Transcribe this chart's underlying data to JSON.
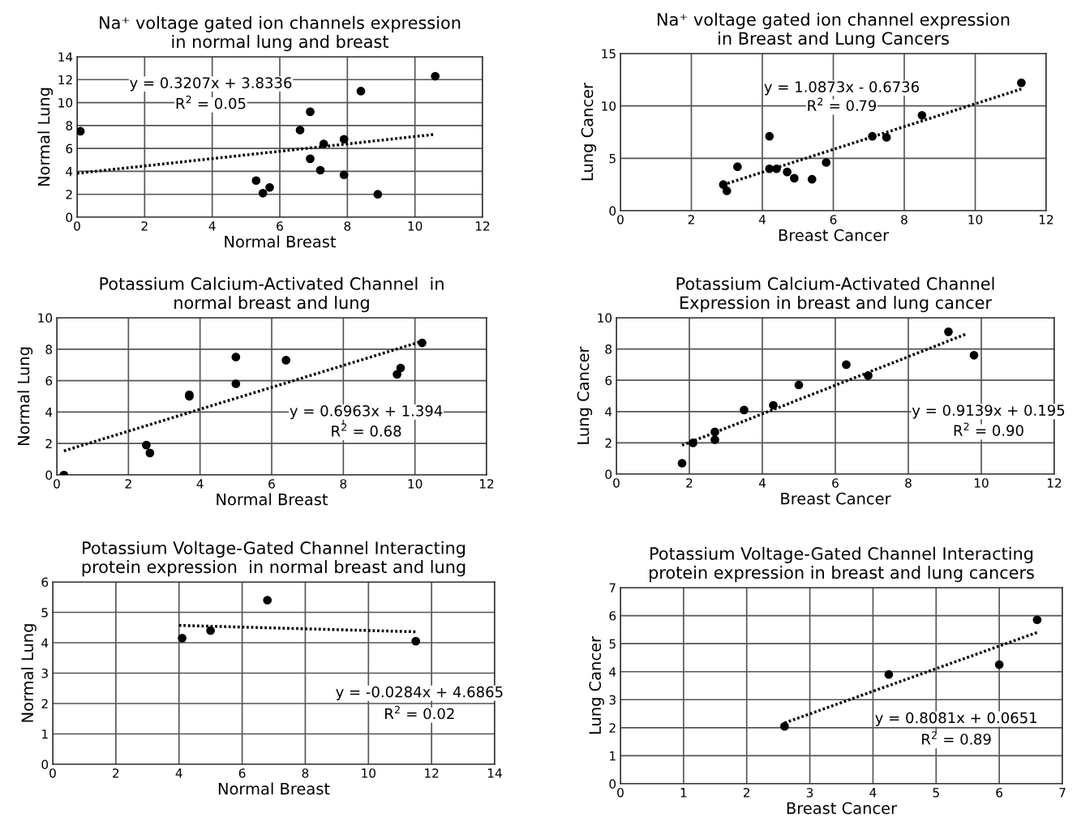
{
  "chart_data": [
    {
      "type": "scatter",
      "title": "Na⁺ voltage gated ion channels expression\nin normal lung and breast",
      "xlabel": "Normal Breast",
      "ylabel": "Normal Lung",
      "xlim": [
        0,
        12
      ],
      "ylim": [
        0,
        14
      ],
      "xticks": [
        0,
        2,
        4,
        6,
        8,
        10,
        12
      ],
      "yticks": [
        0,
        2,
        4,
        6,
        8,
        10,
        12,
        14
      ],
      "grid": true,
      "legend": false,
      "annotations": [
        "y = 0.3207x + 3.8336",
        "R$^{2}$ = 0.05"
      ],
      "series": [
        {
          "marker": "circle",
          "color": "#000000",
          "x": [
            0.1,
            5.3,
            5.5,
            5.7,
            6.6,
            6.9,
            6.9,
            7.2,
            7.3,
            7.9,
            7.9,
            8.4,
            8.9,
            10.6
          ],
          "values": [
            7.5,
            3.2,
            2.1,
            2.6,
            7.6,
            9.2,
            5.1,
            4.1,
            6.4,
            6.8,
            3.7,
            11.0,
            2.0,
            12.3
          ]
        },
        {
          "type": "line",
          "marker": "none",
          "line_style": "dotted",
          "color": "#000000",
          "x": [
            0,
            10.6
          ],
          "values": [
            3.83,
            7.23
          ]
        }
      ]
    },
    {
      "type": "scatter",
      "title": "Na⁺ voltage gated ion channel expression\nin Breast and Lung Cancers",
      "xlabel": "Breast Cancer",
      "ylabel": "Lung Cancer",
      "xlim": [
        0,
        12
      ],
      "ylim": [
        0,
        15
      ],
      "xticks": [
        0,
        2,
        4,
        6,
        8,
        10,
        12
      ],
      "yticks": [
        0,
        5,
        10,
        15
      ],
      "grid": true,
      "legend": false,
      "annotations": [
        "y = 1.0873x - 0.6736",
        "R$^{2}$ = 0.79"
      ],
      "series": [
        {
          "marker": "circle",
          "color": "#000000",
          "x": [
            2.9,
            3.0,
            3.3,
            4.2,
            4.2,
            4.4,
            4.7,
            4.9,
            5.4,
            5.8,
            7.1,
            7.5,
            8.5,
            11.3
          ],
          "values": [
            2.5,
            1.9,
            4.2,
            7.1,
            4.0,
            4.0,
            3.7,
            3.1,
            3.0,
            4.6,
            7.1,
            7.0,
            9.1,
            12.2
          ]
        },
        {
          "type": "line",
          "marker": "none",
          "line_style": "dotted",
          "color": "#000000",
          "x": [
            2.9,
            11.3
          ],
          "values": [
            2.48,
            11.61
          ]
        }
      ]
    },
    {
      "type": "scatter",
      "title": "Potassium Calcium-Activated Channel  in\nnormal breast and lung",
      "xlabel": "Normal Breast",
      "ylabel": "Normal Lung",
      "xlim": [
        0,
        12
      ],
      "ylim": [
        0,
        10
      ],
      "xticks": [
        0,
        2,
        4,
        6,
        8,
        10,
        12
      ],
      "yticks": [
        0,
        2,
        4,
        6,
        8,
        10
      ],
      "grid": true,
      "legend": false,
      "annotations": [
        "y = 0.6963x + 1.394",
        "R$^{2}$ = 0.68"
      ],
      "series": [
        {
          "marker": "circle",
          "color": "#000000",
          "x": [
            0.2,
            2.5,
            2.6,
            3.7,
            3.7,
            5.0,
            5.0,
            6.4,
            9.5,
            9.6,
            10.2
          ],
          "values": [
            0.0,
            1.9,
            1.4,
            5.1,
            5.0,
            7.5,
            5.8,
            7.3,
            6.4,
            6.8,
            8.4
          ]
        },
        {
          "type": "line",
          "marker": "none",
          "line_style": "dotted",
          "color": "#000000",
          "x": [
            0.2,
            10.2
          ],
          "values": [
            1.53,
            8.5
          ]
        }
      ]
    },
    {
      "type": "scatter",
      "title": "Potassium Calcium-Activated Channel\nExpression in breast and lung cancer",
      "xlabel": "Breast Cancer",
      "ylabel": "Lung Cancer",
      "xlim": [
        0,
        12
      ],
      "ylim": [
        0,
        10
      ],
      "xticks": [
        0,
        2,
        4,
        6,
        8,
        10,
        12
      ],
      "yticks": [
        0,
        2,
        4,
        6,
        8,
        10
      ],
      "grid": true,
      "legend": false,
      "annotations": [
        "y = 0.9139x + 0.195",
        "R$^{2}$ = 0.90"
      ],
      "series": [
        {
          "marker": "circle",
          "color": "#000000",
          "x": [
            1.8,
            2.1,
            2.7,
            2.7,
            3.5,
            4.3,
            5.0,
            6.3,
            6.9,
            9.1,
            9.8
          ],
          "values": [
            0.7,
            2.0,
            2.7,
            2.2,
            4.1,
            4.4,
            5.7,
            7.0,
            6.3,
            9.1,
            7.6
          ]
        },
        {
          "type": "line",
          "marker": "none",
          "line_style": "dotted",
          "color": "#000000",
          "x": [
            1.8,
            9.6
          ],
          "values": [
            1.84,
            8.97
          ]
        }
      ]
    },
    {
      "type": "scatter",
      "title": "Potassium Voltage-Gated Channel Interacting\nprotein expression  in normal breast and lung",
      "xlabel": "Normal Breast",
      "ylabel": "Normal Lung",
      "xlim": [
        0,
        14
      ],
      "ylim": [
        0,
        6
      ],
      "xticks": [
        0,
        2,
        4,
        6,
        8,
        10,
        12,
        14
      ],
      "yticks": [
        0,
        1,
        2,
        3,
        4,
        5,
        6
      ],
      "grid": true,
      "legend": false,
      "annotations": [
        "y = -0.0284x + 4.6865",
        "R$^{2}$ = 0.02"
      ],
      "series": [
        {
          "marker": "circle",
          "color": "#000000",
          "x": [
            4.1,
            5.0,
            6.8,
            11.5
          ],
          "values": [
            4.15,
            4.4,
            5.4,
            4.05
          ]
        },
        {
          "type": "line",
          "marker": "none",
          "line_style": "dotted",
          "color": "#000000",
          "x": [
            4.0,
            11.5
          ],
          "values": [
            4.57,
            4.36
          ]
        }
      ]
    },
    {
      "type": "scatter",
      "title": "Potassium Voltage-Gated Channel Interacting\nprotein expression in breast and lung cancers",
      "xlabel": "Breast Cancer",
      "ylabel": "Lung Cancer",
      "xlim": [
        0,
        7
      ],
      "ylim": [
        0,
        7
      ],
      "xticks": [
        0,
        1,
        2,
        3,
        4,
        5,
        6,
        7
      ],
      "yticks": [
        0,
        1,
        2,
        3,
        4,
        5,
        6,
        7
      ],
      "grid": true,
      "legend": false,
      "annotations": [
        "y = 0.8081x + 0.0651",
        "R$^{2}$ = 0.89"
      ],
      "series": [
        {
          "marker": "circle",
          "color": "#000000",
          "x": [
            2.6,
            4.25,
            6.0,
            6.6
          ],
          "values": [
            2.05,
            3.9,
            4.25,
            5.85
          ]
        },
        {
          "type": "line",
          "marker": "none",
          "line_style": "dotted",
          "color": "#000000",
          "x": [
            2.6,
            6.6
          ],
          "values": [
            2.17,
            5.4
          ]
        }
      ]
    }
  ]
}
